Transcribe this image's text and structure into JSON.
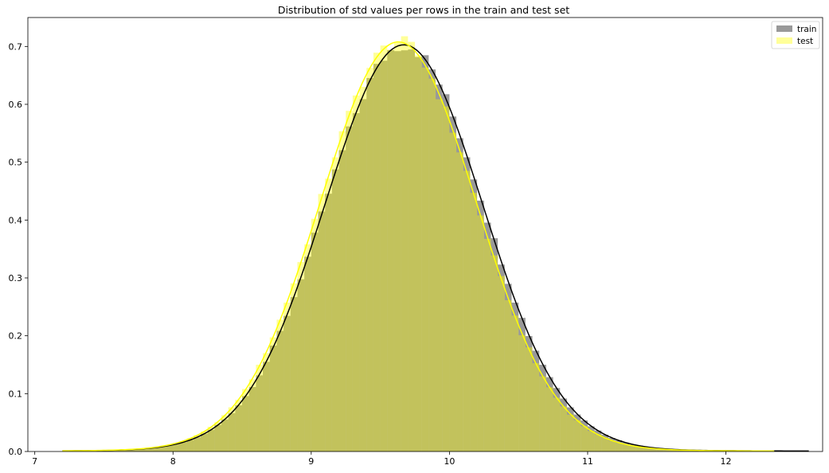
{
  "chart_data": {
    "type": "histogram",
    "title": "Distribution of std values per rows in the train and test set",
    "xlabel": "",
    "ylabel": "",
    "xlim": [
      6.95,
      12.7
    ],
    "ylim": [
      0,
      0.75
    ],
    "x_ticks": [
      7,
      8,
      9,
      10,
      11,
      12
    ],
    "y_ticks": [
      0.0,
      0.1,
      0.2,
      0.3,
      0.4,
      0.5,
      0.6,
      0.7
    ],
    "grid": false,
    "legend_placement": "top-right",
    "series": [
      {
        "name": "train",
        "color": "#000000",
        "fill_opacity": 0.4,
        "range": [
          7.2,
          12.6
        ],
        "mean": 9.67,
        "std": 0.57,
        "peak_density": 0.705
      },
      {
        "name": "test",
        "color": "#ffff00",
        "fill_opacity": 0.4,
        "range": [
          7.2,
          12.35
        ],
        "mean": 9.63,
        "std": 0.565,
        "peak_density": 0.71
      }
    ]
  }
}
